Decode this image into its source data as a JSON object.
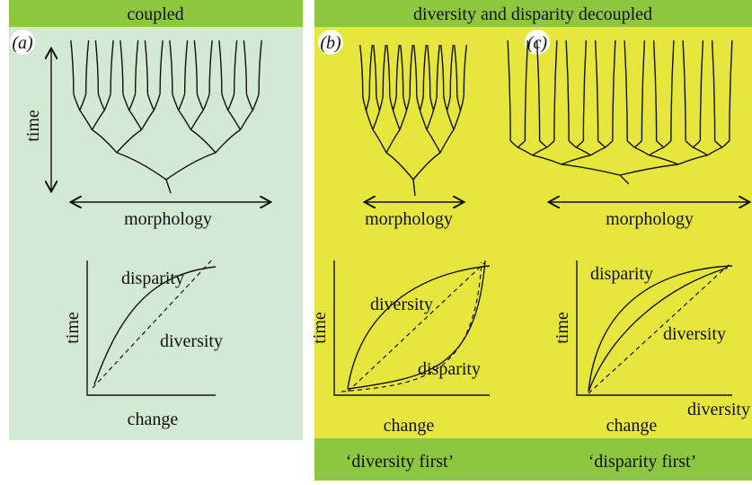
{
  "headers": {
    "coupled": "coupled",
    "decoupled": "diversity and disparity decoupled"
  },
  "footers": [
    "‘diversity first’",
    "‘disparity first’"
  ],
  "panels": [
    {
      "label": "(a)",
      "tree_time": "time",
      "tree_x": "morphology",
      "graph": {
        "y_label": "time",
        "x_label": "change",
        "curve_labels": [
          "disparity",
          "diversity"
        ]
      }
    },
    {
      "label": "(b)",
      "tree_x": "morphology",
      "graph": {
        "y_label": "time",
        "x_label": "change",
        "curve_labels": [
          "diversity",
          "disparity"
        ]
      }
    },
    {
      "label": "(c)",
      "tree_x": "morphology",
      "graph": {
        "y_label": "time",
        "x_label": "change",
        "curve_labels": [
          "disparity",
          "diversity",
          "diversity"
        ]
      }
    }
  ]
}
